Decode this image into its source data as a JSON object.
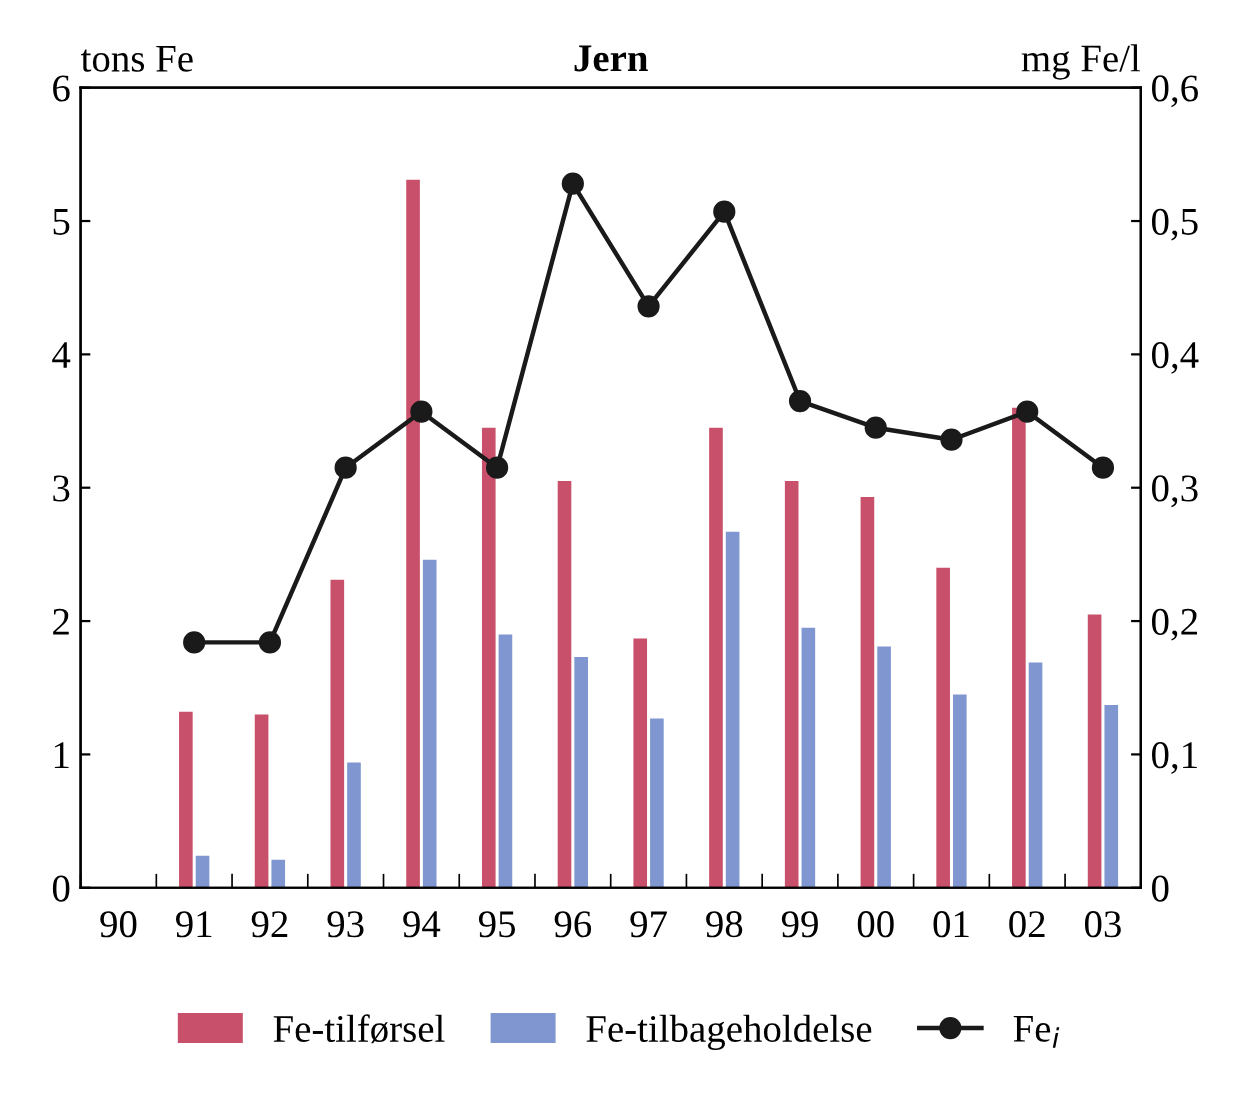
{
  "chart_data": {
    "type": "bar",
    "title": "Jern",
    "ylabel": "tons Fe",
    "y2label": "mg Fe/l",
    "categories": [
      "90",
      "91",
      "92",
      "93",
      "94",
      "95",
      "96",
      "97",
      "98",
      "99",
      "00",
      "01",
      "02",
      "03"
    ],
    "series": [
      {
        "name": "Fe-tilførsel",
        "color": "#c8506a",
        "values": [
          null,
          1.32,
          1.3,
          2.31,
          5.31,
          3.45,
          3.05,
          1.87,
          3.45,
          3.05,
          2.93,
          2.4,
          3.6,
          2.05
        ]
      },
      {
        "name": "Fe-tilbageholdelse",
        "color": "#7f96d0",
        "values": [
          null,
          0.24,
          0.21,
          0.94,
          2.46,
          1.9,
          1.73,
          1.27,
          2.67,
          1.95,
          1.81,
          1.45,
          1.69,
          1.37
        ]
      },
      {
        "name": "Fe$_{i}$",
        "type": "line",
        "axis": "y2",
        "color": "#1a1a1a",
        "marker": "circle",
        "line_style": "solid",
        "values": [
          null,
          0.184,
          0.184,
          0.315,
          0.357,
          0.315,
          0.528,
          0.436,
          0.507,
          0.365,
          0.345,
          0.336,
          0.357,
          0.315
        ]
      }
    ],
    "ylim": [
      0,
      6
    ],
    "yticks": [
      0,
      1,
      2,
      3,
      4,
      5,
      6
    ],
    "y2lim": [
      0,
      0.6
    ],
    "y2ticks": [
      {
        "value": 0,
        "label": "0"
      },
      {
        "value": 0.1,
        "label": "0,1"
      },
      {
        "value": 0.2,
        "label": "0,2"
      },
      {
        "value": 0.3,
        "label": "0,3"
      },
      {
        "value": 0.4,
        "label": "0,4"
      },
      {
        "value": 0.5,
        "label": "0,5"
      },
      {
        "value": 0.6,
        "label": "0,6"
      }
    ],
    "grid": false,
    "legend": "bottom"
  }
}
